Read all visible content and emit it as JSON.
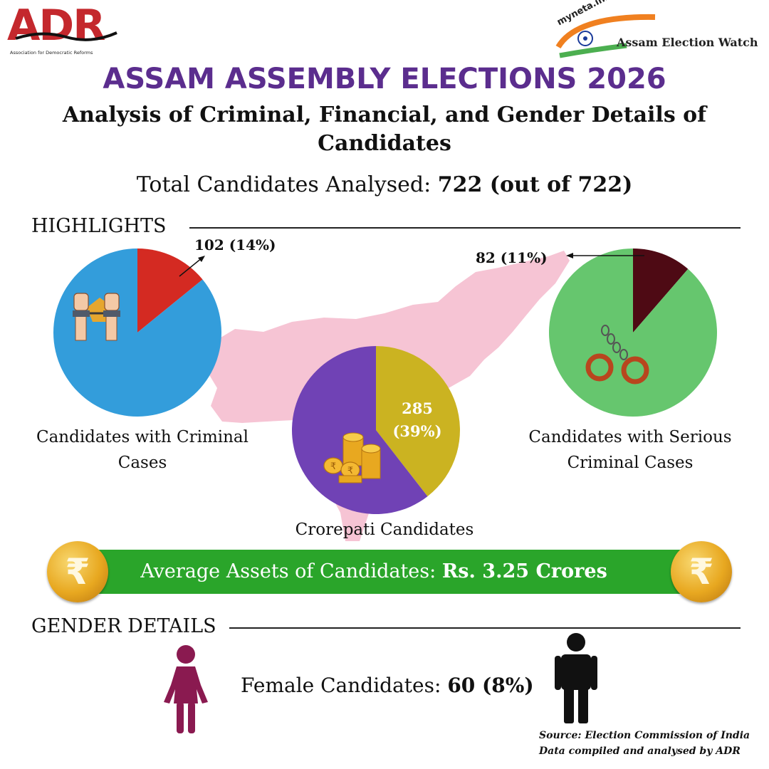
{
  "header": {
    "adr_logo_text": "ADR",
    "adr_logo_subtitle": "Association for Democratic Reforms",
    "myneta_logo_text": "myneta.info",
    "watch_logo_text": "Assam Election Watch"
  },
  "title": "ASSAM ASSEMBLY ELECTIONS 2026",
  "subtitle": "Analysis of Criminal, Financial, and Gender Details of Candidates",
  "total": {
    "label": "Total Candidates Analysed:",
    "value": "722 (out of 722)"
  },
  "highlights": {
    "heading": "HIGHLIGHTS"
  },
  "colors": {
    "title": "#5b2d8e",
    "criminal_slice": "#d42a22",
    "criminal_rest": "#339ddb",
    "crorepati_slice": "#cbb321",
    "crorepati_rest": "#7042b5",
    "serious_slice": "#4e0a14",
    "serious_rest": "#66c66e",
    "banner": "#2aa52a",
    "map": "#f6c4d4",
    "female_icon": "#8a1a50",
    "male_icon": "#111111"
  },
  "chart_data": [
    {
      "type": "pie",
      "title": "Candidates with Criminal Cases",
      "total": 722,
      "slices": [
        {
          "name": "With criminal cases",
          "value": 102,
          "percent": 14,
          "label": "102 (14%)"
        },
        {
          "name": "Others",
          "value": 620,
          "percent": 86
        }
      ]
    },
    {
      "type": "pie",
      "title": "Crorepati Candidates",
      "total": 722,
      "slices": [
        {
          "name": "Crorepati",
          "value": 285,
          "percent": 39,
          "label_count": "285",
          "label_percent": "(39%)"
        },
        {
          "name": "Others",
          "value": 437,
          "percent": 61
        }
      ]
    },
    {
      "type": "pie",
      "title": "Candidates with Serious Criminal Cases",
      "total": 722,
      "slices": [
        {
          "name": "With serious criminal cases",
          "value": 82,
          "percent": 11,
          "label": "82 (11%)"
        },
        {
          "name": "Others",
          "value": 640,
          "percent": 89
        }
      ]
    }
  ],
  "assets": {
    "label": "Average Assets of Candidates:",
    "value": "Rs. 3.25 Crores",
    "coin_symbol": "₹"
  },
  "gender": {
    "heading": "GENDER DETAILS",
    "female_label": "Female Candidates:",
    "female_value": "60 (8%)"
  },
  "source": {
    "line1": "Source: Election Commission of India",
    "line2": "Data compiled and analysed by ADR"
  }
}
